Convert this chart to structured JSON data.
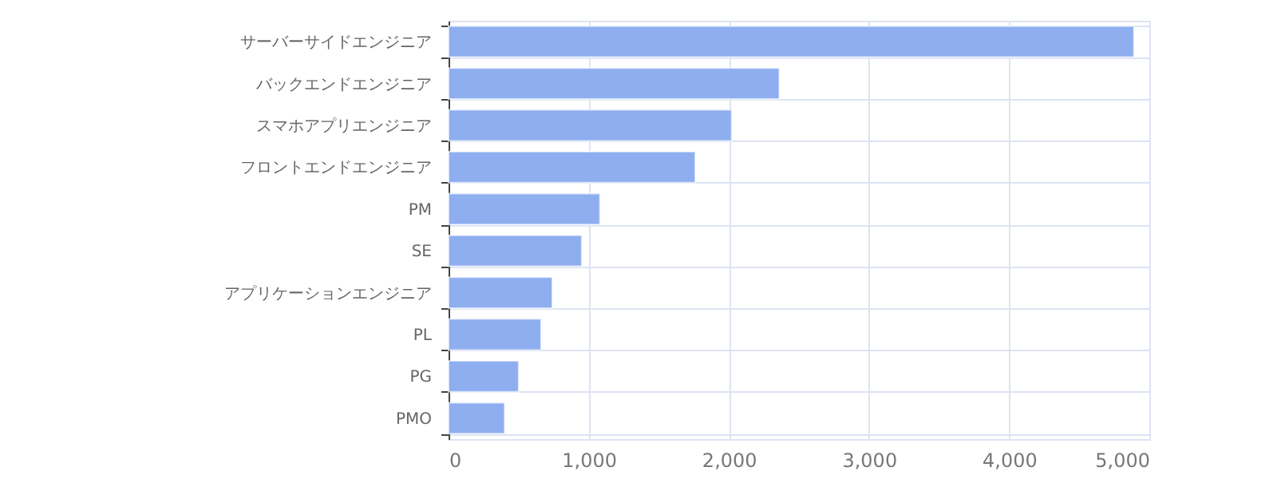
{
  "chart_data": {
    "type": "bar",
    "orientation": "horizontal",
    "categories": [
      "サーバーサイドエンジニア",
      "バックエンドエンジニア",
      "スマホアプリエンジニア",
      "フロントエンドエンジニア",
      "PM",
      "SE",
      "アプリケーションエンジニア",
      "PL",
      "PG",
      "PMO"
    ],
    "values": [
      4890,
      2360,
      2020,
      1760,
      1080,
      950,
      740,
      660,
      500,
      400
    ],
    "color": "#8eaef0",
    "xlim": [
      0,
      5000
    ],
    "xticks": [
      0,
      {
        "value": 1000,
        "label": "1,000"
      },
      {
        "value": 2000,
        "label": "2,000"
      },
      {
        "value": 3000,
        "label": "3,000"
      },
      {
        "value": 4000,
        "label": "4,000"
      },
      {
        "value": 5000,
        "label": "5,000"
      }
    ],
    "grid": true
  }
}
